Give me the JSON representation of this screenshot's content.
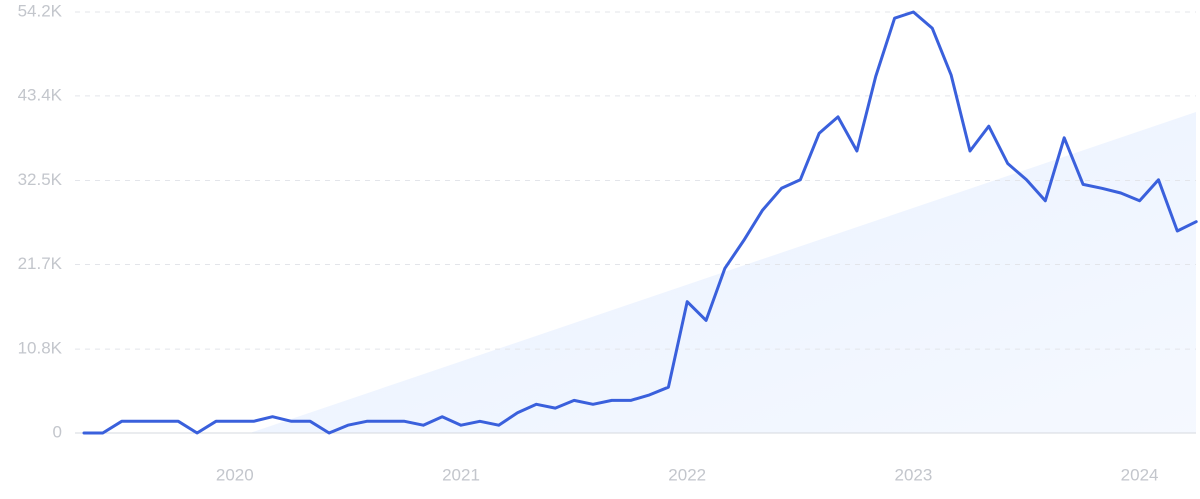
{
  "chart_data": {
    "type": "line",
    "categories": [
      null,
      null,
      null,
      null,
      null,
      null,
      null,
      null,
      "2020",
      null,
      null,
      null,
      null,
      null,
      null,
      null,
      null,
      null,
      null,
      null,
      "2021",
      null,
      null,
      null,
      null,
      null,
      null,
      null,
      null,
      null,
      null,
      null,
      "2022",
      null,
      null,
      null,
      null,
      null,
      null,
      null,
      null,
      null,
      null,
      null,
      "2023",
      null,
      null,
      null,
      null,
      null,
      null,
      null,
      null,
      null,
      null,
      null,
      "2024",
      null,
      null,
      null
    ],
    "series": [
      {
        "color": "#3a60dc",
        "values": [
          0,
          0,
          1500,
          1500,
          1500,
          1500,
          0,
          1500,
          1500,
          1500,
          2100,
          1500,
          1500,
          0,
          1000,
          1500,
          1500,
          1500,
          1000,
          2100,
          1000,
          1500,
          1000,
          2600,
          3700,
          3200,
          4200,
          3700,
          4200,
          4200,
          4900,
          5900,
          16900,
          14500,
          21200,
          24800,
          28700,
          31500,
          32600,
          38600,
          40700,
          36300,
          45900,
          53400,
          54200,
          52100,
          46100,
          36300,
          39500,
          34700,
          32600,
          29900,
          38000,
          32000,
          31500,
          30900,
          29900,
          32600,
          26000,
          27200
        ]
      }
    ],
    "ylim": [
      0,
      54200
    ],
    "yticks": [
      0,
      {
        "value": 10800,
        "label": "10.8K"
      },
      {
        "value": 21700,
        "label": "21.7K"
      },
      {
        "value": 32500,
        "label": "32.5K"
      },
      {
        "value": 43400,
        "label": "43.4K"
      },
      {
        "value": 54200,
        "label": "54.2K"
      }
    ],
    "grid": true
  }
}
